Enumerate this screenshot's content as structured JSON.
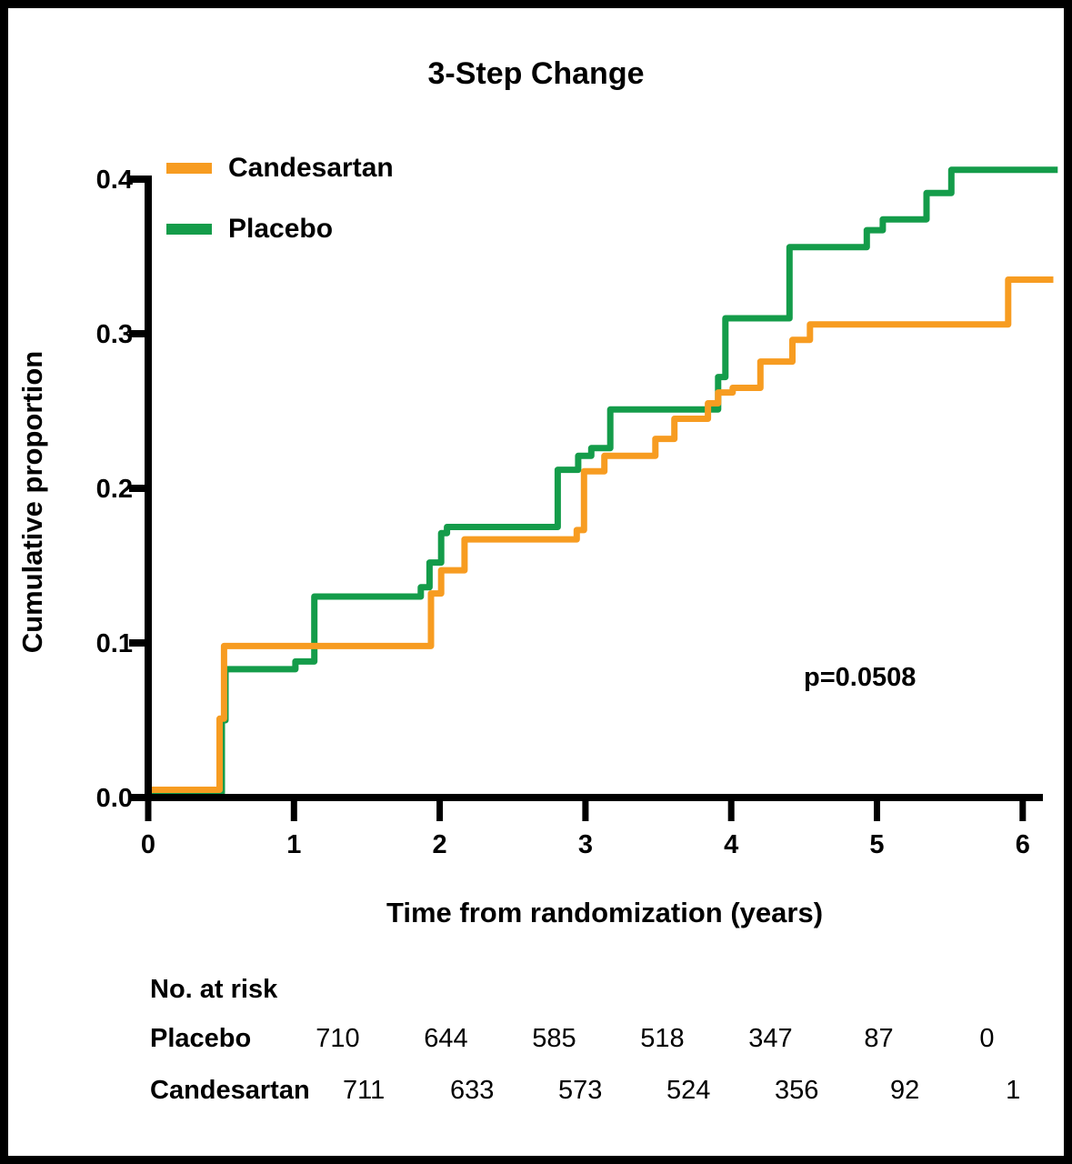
{
  "chart_data": {
    "type": "line",
    "variant": "cumulative-incidence-step-curve",
    "title": "3-Step Change",
    "xlabel": "Time from randomization (years)",
    "ylabel": "Cumulative proportion",
    "xlim": [
      0,
      6.3
    ],
    "ylim": [
      0.0,
      0.42
    ],
    "grid": false,
    "legend_position": "top-left-inside",
    "annotation": {
      "text": "p=0.0508"
    },
    "x_ticks": [
      {
        "value": 0,
        "label": "0"
      },
      {
        "value": 1,
        "label": "1"
      },
      {
        "value": 2,
        "label": "2"
      },
      {
        "value": 3,
        "label": "3"
      },
      {
        "value": 4,
        "label": "4"
      },
      {
        "value": 5,
        "label": "5"
      },
      {
        "value": 6,
        "label": "6"
      }
    ],
    "y_ticks": [
      {
        "value": 0.0,
        "label": "0.0"
      },
      {
        "value": 0.1,
        "label": "0.1"
      },
      {
        "value": 0.2,
        "label": "0.2"
      },
      {
        "value": 0.3,
        "label": "0.3"
      },
      {
        "value": 0.4,
        "label": "0.4"
      }
    ],
    "series": [
      {
        "name": "Candesartan",
        "color": "#F79C21",
        "end_year": 6.21,
        "points": [
          [
            0.0,
            0.005
          ],
          [
            0.49,
            0.051
          ],
          [
            0.52,
            0.098
          ],
          [
            1.94,
            0.132
          ],
          [
            2.01,
            0.147
          ],
          [
            2.17,
            0.167
          ],
          [
            2.94,
            0.173
          ],
          [
            2.99,
            0.211
          ],
          [
            3.13,
            0.221
          ],
          [
            3.48,
            0.232
          ],
          [
            3.61,
            0.245
          ],
          [
            3.84,
            0.255
          ],
          [
            3.91,
            0.262
          ],
          [
            4.01,
            0.265
          ],
          [
            4.2,
            0.282
          ],
          [
            4.42,
            0.296
          ],
          [
            4.54,
            0.306
          ],
          [
            5.9,
            0.335
          ]
        ]
      },
      {
        "name": "Placebo",
        "color": "#149C4A",
        "end_year": 6.24,
        "points": [
          [
            0.0,
            0.003
          ],
          [
            0.505,
            0.05
          ],
          [
            0.53,
            0.083
          ],
          [
            1.01,
            0.088
          ],
          [
            1.14,
            0.13
          ],
          [
            1.87,
            0.136
          ],
          [
            1.93,
            0.152
          ],
          [
            2.01,
            0.171
          ],
          [
            2.05,
            0.175
          ],
          [
            2.81,
            0.212
          ],
          [
            2.95,
            0.221
          ],
          [
            3.04,
            0.226
          ],
          [
            3.17,
            0.251
          ],
          [
            3.91,
            0.272
          ],
          [
            3.96,
            0.31
          ],
          [
            4.4,
            0.356
          ],
          [
            4.93,
            0.367
          ],
          [
            5.04,
            0.374
          ],
          [
            5.34,
            0.391
          ],
          [
            5.51,
            0.406
          ]
        ]
      }
    ],
    "risk_table": {
      "header": "No. at risk",
      "rows": [
        {
          "label": "Placebo",
          "values": [
            "710",
            "644",
            "585",
            "518",
            "347",
            "87",
            "0"
          ]
        },
        {
          "label": "Candesartan",
          "values": [
            "711",
            "633",
            "573",
            "524",
            "356",
            "92",
            "1"
          ]
        }
      ]
    }
  }
}
